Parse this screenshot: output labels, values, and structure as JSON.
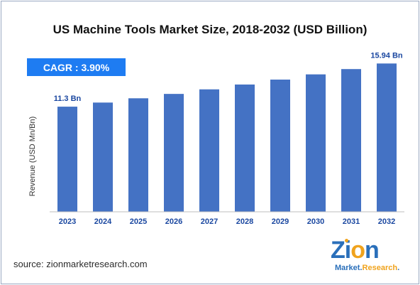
{
  "chart_data": {
    "type": "bar",
    "title": "US Machine Tools Market Size, 2018-2032 (USD Billion)",
    "ylabel": "Revenue (USD Mn/Bn)",
    "xlabel": "",
    "categories": [
      "2023",
      "2024",
      "2025",
      "2026",
      "2027",
      "2028",
      "2029",
      "2030",
      "2031",
      "2032"
    ],
    "values": [
      11.3,
      11.74,
      12.2,
      12.67,
      13.16,
      13.68,
      14.21,
      14.77,
      15.34,
      15.94
    ],
    "data_labels": [
      "11.3 Bn",
      "",
      "",
      "",
      "",
      "",
      "",
      "",
      "",
      "15.94 Bn"
    ],
    "ylim": [
      0,
      16.5
    ],
    "grid": false,
    "bar_color": "#4472c4",
    "label_color": "#1a47a0"
  },
  "cagr_label": "CAGR : 3.90%",
  "cagr_color": "#1e7cf2",
  "source_text": "source: zionmarketresearch.com",
  "logo": {
    "word_start": "Zi",
    "word_o": "o",
    "word_end": "n",
    "sub_start": "Market.",
    "sub_accent": "Research",
    "sub_end": "."
  }
}
